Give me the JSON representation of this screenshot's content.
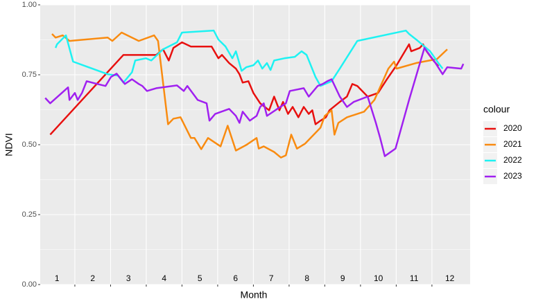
{
  "chart_data": {
    "type": "line",
    "x_label": "Month",
    "y_label": "NDVI",
    "legend_title": "colour",
    "legend": "right",
    "xlim": [
      0.53,
      12.57
    ],
    "xticks": [
      1.5,
      2.5,
      3.5,
      4.5,
      5.5,
      6.5,
      7.5,
      8.5,
      9.5,
      10.5,
      11.5
    ],
    "ylim": [
      0,
      1
    ],
    "yticks": [
      {
        "value": 0,
        "label": "0.00"
      },
      {
        "value": 0.25,
        "label": "0.25"
      },
      {
        "value": 0.5,
        "label": "0.50"
      },
      {
        "value": 0.75,
        "label": "0.75"
      },
      {
        "value": 1,
        "label": "1.00"
      }
    ],
    "grid": true,
    "month_labels": [
      1,
      2,
      3,
      4,
      5,
      6,
      7,
      8,
      9,
      10,
      11,
      12
    ],
    "series": [
      {
        "name": "2020",
        "color": "#e8100f",
        "x": [
          0.81,
          2.86,
          3.78,
          3.97,
          4.13,
          4.26,
          4.5,
          4.75,
          5.33,
          5.52,
          5.62,
          5.82,
          6.01,
          6.11,
          6.2,
          6.36,
          6.5,
          6.69,
          6.94,
          7.08,
          7.23,
          7.33,
          7.47,
          7.6,
          7.76,
          7.91,
          8.05,
          8.15,
          8.24,
          8.38,
          8.53,
          8.63,
          8.92,
          9.12,
          9.27,
          9.41,
          9.7,
          9.99,
          10.24,
          10.51,
          10.86,
          10.92,
          11.16,
          11.25,
          11.35,
          11.54,
          11.68
        ],
        "values": [
          0.536,
          0.821,
          0.821,
          0.841,
          0.801,
          0.846,
          0.866,
          0.851,
          0.851,
          0.809,
          0.821,
          0.792,
          0.772,
          0.752,
          0.722,
          0.727,
          0.685,
          0.648,
          0.623,
          0.672,
          0.623,
          0.653,
          0.61,
          0.635,
          0.598,
          0.635,
          0.61,
          0.623,
          0.573,
          0.586,
          0.598,
          0.623,
          0.653,
          0.672,
          0.717,
          0.71,
          0.672,
          0.685,
          0.734,
          0.784,
          0.859,
          0.834,
          0.846,
          0.859,
          0.834,
          0.801,
          0.781
        ]
      },
      {
        "name": "2021",
        "color": "#f98b10",
        "x": [
          0.86,
          0.96,
          1.16,
          1.35,
          2.42,
          2.55,
          2.81,
          3.29,
          3.72,
          3.83,
          4.11,
          4.26,
          4.46,
          4.75,
          4.85,
          5.04,
          5.23,
          5.58,
          5.78,
          6.01,
          6.3,
          6.59,
          6.65,
          6.79,
          7.08,
          7.27,
          7.41,
          7.56,
          7.72,
          7.95,
          8.38,
          8.5,
          8.69,
          8.77,
          8.88,
          9.12,
          9.6,
          9.89,
          10.28,
          10.44,
          10.51,
          11.06,
          11.64,
          11.93
        ],
        "values": [
          0.896,
          0.883,
          0.891,
          0.871,
          0.883,
          0.871,
          0.901,
          0.871,
          0.891,
          0.871,
          0.573,
          0.593,
          0.598,
          0.524,
          0.524,
          0.484,
          0.524,
          0.494,
          0.568,
          0.479,
          0.499,
          0.524,
          0.486,
          0.494,
          0.474,
          0.454,
          0.462,
          0.536,
          0.486,
          0.504,
          0.561,
          0.603,
          0.623,
          0.536,
          0.578,
          0.598,
          0.618,
          0.66,
          0.772,
          0.797,
          0.772,
          0.792,
          0.806,
          0.841
        ]
      },
      {
        "name": "2022",
        "color": "#1ef2f2",
        "x": [
          0.96,
          1.0,
          1.25,
          1.45,
          2.42,
          2.71,
          2.86,
          3.1,
          3.19,
          3.49,
          3.64,
          3.97,
          4.36,
          4.5,
          5.39,
          5.52,
          5.72,
          5.91,
          6.01,
          6.17,
          6.3,
          6.5,
          6.63,
          6.75,
          6.88,
          6.98,
          7.08,
          7.37,
          7.66,
          7.85,
          7.99,
          8.24,
          8.38,
          8.69,
          8.92,
          9.41,
          10.77,
          10.86,
          11.06,
          11.45,
          11.68,
          11.8
        ],
        "values": [
          0.846,
          0.859,
          0.891,
          0.797,
          0.752,
          0.747,
          0.722,
          0.759,
          0.801,
          0.809,
          0.801,
          0.841,
          0.866,
          0.901,
          0.908,
          0.876,
          0.851,
          0.809,
          0.834,
          0.764,
          0.777,
          0.784,
          0.801,
          0.772,
          0.792,
          0.767,
          0.801,
          0.809,
          0.814,
          0.834,
          0.821,
          0.742,
          0.71,
          0.727,
          0.772,
          0.871,
          0.908,
          0.896,
          0.876,
          0.834,
          0.792,
          0.772
        ]
      },
      {
        "name": "2023",
        "color": "#a020f0",
        "x": [
          0.67,
          0.81,
          1.31,
          1.35,
          1.5,
          1.58,
          1.7,
          1.83,
          2.13,
          2.36,
          2.51,
          2.67,
          2.9,
          3.1,
          3.29,
          3.39,
          3.52,
          3.78,
          4.36,
          4.55,
          4.65,
          4.94,
          5.19,
          5.27,
          5.43,
          5.82,
          6.01,
          6.11,
          6.2,
          6.4,
          6.59,
          6.69,
          6.79,
          6.88,
          7.17,
          7.41,
          7.52,
          7.91,
          8.05,
          8.3,
          8.44,
          8.57,
          8.69,
          8.92,
          9.12,
          9.31,
          9.7,
          9.93,
          10.05,
          10.18,
          10.48,
          10.86,
          11.29,
          11.6,
          11.8,
          11.93,
          12.32,
          12.38
        ],
        "values": [
          0.667,
          0.648,
          0.705,
          0.66,
          0.685,
          0.66,
          0.685,
          0.727,
          0.717,
          0.71,
          0.742,
          0.754,
          0.717,
          0.734,
          0.717,
          0.71,
          0.692,
          0.702,
          0.712,
          0.692,
          0.71,
          0.66,
          0.648,
          0.586,
          0.61,
          0.628,
          0.603,
          0.578,
          0.618,
          0.586,
          0.603,
          0.635,
          0.648,
          0.603,
          0.628,
          0.648,
          0.692,
          0.702,
          0.672,
          0.71,
          0.717,
          0.727,
          0.734,
          0.672,
          0.635,
          0.653,
          0.672,
          0.578,
          0.524,
          0.459,
          0.486,
          0.66,
          0.846,
          0.792,
          0.752,
          0.777,
          0.772,
          0.789
        ]
      }
    ]
  }
}
